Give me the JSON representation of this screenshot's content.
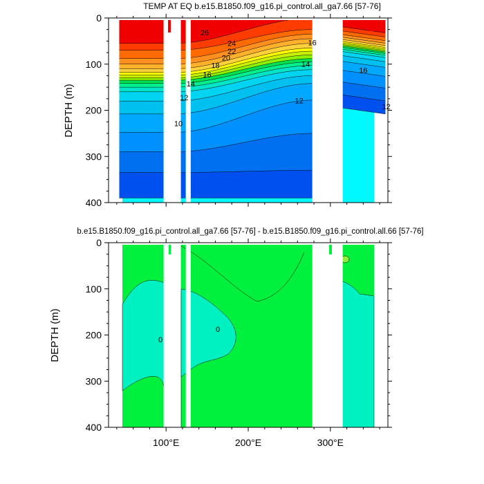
{
  "chart_data": [
    {
      "type": "heatmap",
      "title": "TEMP AT EQ b.e15.B1850.f09_g16.pi_control.all_ga7.66 [57-76]",
      "ylabel": "DEPTH (m)",
      "xlim": [
        30,
        370
      ],
      "ylim": [
        0,
        400
      ],
      "y_reversed": true,
      "x_ticks": [
        "100°E",
        "200°E",
        "300°E"
      ],
      "x_tick_values": [
        100,
        200,
        300
      ],
      "y_ticks": [
        "0",
        "100",
        "200",
        "300",
        "400"
      ],
      "y_tick_values": [
        0,
        100,
        200,
        300,
        400
      ],
      "data_x_range": [
        43,
        367
      ],
      "data_y_range": [
        5,
        400
      ],
      "land_masks": [
        [
          97,
          118
        ],
        [
          124,
          130
        ],
        [
          278,
          315
        ]
      ],
      "isotherms": [
        {
          "value": 27,
          "depth_west": 55,
          "depth_east": 0
        },
        {
          "value": 26,
          "depth_west": 70,
          "depth_east": 25
        },
        {
          "value": 25,
          "depth_west": 88,
          "depth_east": 35
        },
        {
          "value": 24,
          "depth_west": 100,
          "depth_east": 45
        },
        {
          "value": 23,
          "depth_west": 110,
          "depth_east": 55
        },
        {
          "value": 22,
          "depth_west": 118,
          "depth_east": 65
        },
        {
          "value": 21,
          "depth_west": 124,
          "depth_east": 72
        },
        {
          "value": 20,
          "depth_west": 130,
          "depth_east": 80
        },
        {
          "value": 19,
          "depth_west": 135,
          "depth_east": 88
        },
        {
          "value": 18,
          "depth_west": 142,
          "depth_east": 95
        },
        {
          "value": 17,
          "depth_west": 150,
          "depth_east": 103
        },
        {
          "value": 16,
          "depth_west": 160,
          "depth_east": 112
        },
        {
          "value": 15,
          "depth_west": 180,
          "depth_east": 125
        },
        {
          "value": 14,
          "depth_west": 208,
          "depth_east": 142
        },
        {
          "value": 13,
          "depth_west": 248,
          "depth_east": 178
        },
        {
          "value": 12,
          "depth_west": 290,
          "depth_east": 250
        },
        {
          "value": 11,
          "depth_west": 335,
          "depth_east": 330
        },
        {
          "value": 10,
          "depth_west": 390,
          "depth_east": 390
        }
      ],
      "contour_labels": [
        {
          "text": "26",
          "x": 147,
          "y": 57
        },
        {
          "text": "24",
          "x": 180,
          "y": 92
        },
        {
          "text": "22",
          "x": 180,
          "y": 118
        },
        {
          "text": "20",
          "x": 173,
          "y": 140
        },
        {
          "text": "18",
          "x": 160,
          "y": 165
        },
        {
          "text": "16",
          "x": 150,
          "y": 195
        },
        {
          "text": "14",
          "x": 130,
          "y": 225
        },
        {
          "text": "12",
          "x": 122,
          "y": 270
        },
        {
          "text": "10",
          "x": 115,
          "y": 355
        },
        {
          "text": "16",
          "x": 278,
          "y": 90
        },
        {
          "text": "14",
          "x": 270,
          "y": 160
        },
        {
          "text": "12",
          "x": 262,
          "y": 280
        },
        {
          "text": "16",
          "x": 340,
          "y": 180
        },
        {
          "text": "12",
          "x": 368,
          "y": 300
        }
      ]
    },
    {
      "type": "heatmap",
      "title": "b.e15.B1850.f09_g16.pi_control.all_ga7.66 [57-76] - b.e15.B1850.f09_g16.pi_control.all.66 [57-76]",
      "ylabel": "DEPTH (m)",
      "xlim": [
        30,
        370
      ],
      "ylim": [
        0,
        400
      ],
      "y_reversed": true,
      "x_ticks": [
        "100°E",
        "200°E",
        "300°E"
      ],
      "x_tick_values": [
        100,
        200,
        300
      ],
      "y_ticks": [
        "0",
        "100",
        "200",
        "300",
        "400"
      ],
      "y_tick_values": [
        0,
        100,
        200,
        300,
        400
      ],
      "contour_labels": [
        {
          "text": "0",
          "x": 232,
          "y": 495
        },
        {
          "text": "0",
          "x": 315,
          "y": 480
        }
      ],
      "colors": {
        "zero_band": "#00f13d",
        "positive_band": "#00f1c1",
        "high_spot": "#8cf03a"
      }
    }
  ]
}
